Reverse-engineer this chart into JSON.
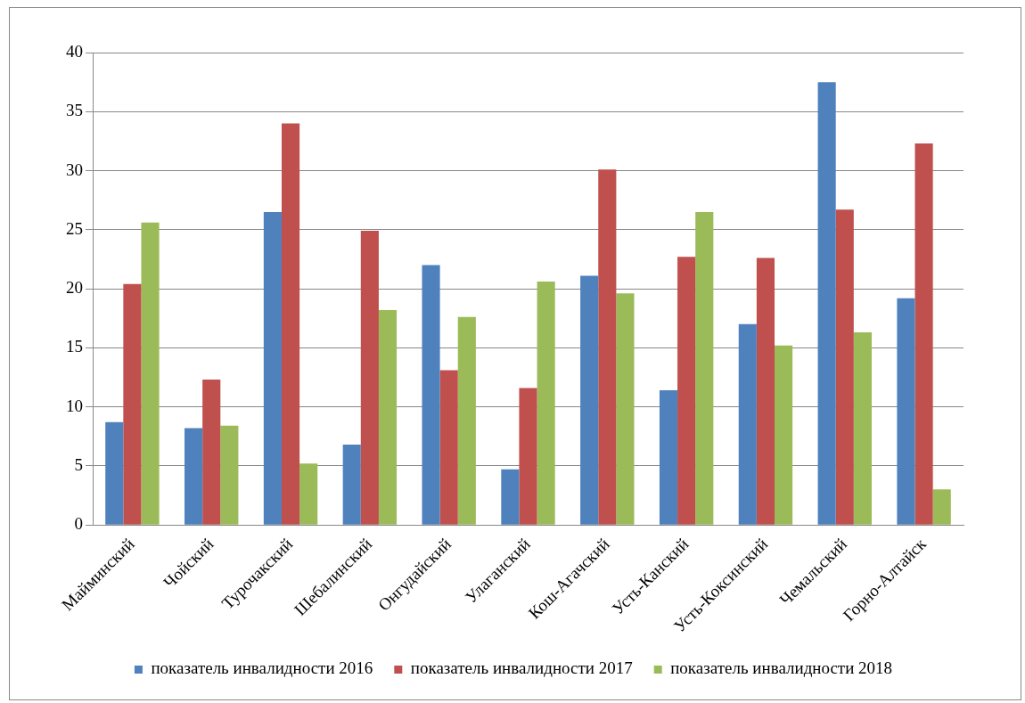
{
  "chart_data": {
    "type": "bar",
    "categories": [
      "Майминский",
      "Чойский",
      "Турочакский",
      "Шебалинский",
      "Онгудайский",
      "Улаганский",
      "Кош-Агачский",
      "Усть-Канский",
      "Усть-Коксинский",
      "Чемальский",
      "Горно-Алтайск"
    ],
    "series": [
      {
        "name": "показатель инвалидности 2016",
        "color": "#4f81bd",
        "values": [
          8.7,
          8.2,
          26.5,
          6.8,
          22,
          4.7,
          21.1,
          11.4,
          17,
          37.5,
          19.2
        ]
      },
      {
        "name": "показатель инвалидности 2017",
        "color": "#c0504d",
        "values": [
          20.4,
          12.3,
          34,
          24.9,
          13.1,
          11.6,
          30.1,
          22.7,
          22.6,
          26.7,
          32.3
        ]
      },
      {
        "name": "показатель инвалидности 2018",
        "color": "#9bbb59",
        "values": [
          25.6,
          8.4,
          5.2,
          18.2,
          17.6,
          20.6,
          19.6,
          26.5,
          15.2,
          16.3,
          3.0
        ]
      }
    ],
    "ylim": [
      0,
      40
    ],
    "yticks": [
      0,
      5,
      10,
      15,
      20,
      25,
      30,
      35,
      40
    ],
    "grid": "y",
    "legend": "bottom"
  }
}
